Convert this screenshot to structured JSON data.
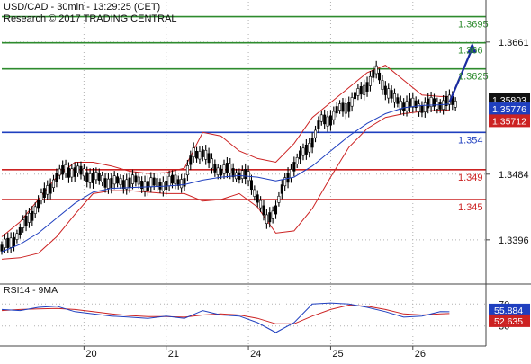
{
  "header": {
    "line1": "USD/CAD - 30min - 13:29:25 (CET)",
    "line2": "Research © 2017 TRADING CENTRAL"
  },
  "chart_data": {
    "type": "line",
    "title": "USD/CAD - 30min - 13:29:25 (CET)",
    "price_axis": {
      "ylim": [
        1.3338,
        1.3715
      ],
      "tick_labels": [
        {
          "value": 1.3661,
          "text": "1.3661"
        },
        {
          "value": 1.3484,
          "text": "1.3484"
        },
        {
          "value": 1.3396,
          "text": "1.3396"
        }
      ]
    },
    "x_axis": {
      "tick_labels": [
        {
          "value": 9,
          "text": "20"
        },
        {
          "value": 18,
          "text": "21"
        },
        {
          "value": 27,
          "text": "24"
        },
        {
          "value": 36,
          "text": "25"
        },
        {
          "value": 45,
          "text": "26"
        }
      ],
      "xlim": [
        0,
        53
      ]
    },
    "levels": [
      {
        "value": 1.3695,
        "label": "1.3695",
        "color": "#2e8b2e"
      },
      {
        "value": 1.366,
        "label": "1.366",
        "color": "#2e8b2e"
      },
      {
        "value": 1.3625,
        "label": "1.3625",
        "color": "#2e8b2e"
      },
      {
        "value": 1.354,
        "label": "1.354",
        "color": "#1f3fbf"
      },
      {
        "value": 1.349,
        "label": "1.349",
        "color": "#cc2222"
      },
      {
        "value": 1.345,
        "label": "1.345",
        "color": "#cc2222"
      }
    ],
    "price_tags": [
      {
        "value": 1.35803,
        "label": "1.35803",
        "bg": "#111111",
        "fg": "#ffffff"
      },
      {
        "value": 1.35776,
        "label": "1.35776",
        "bg": "#1f3fbf",
        "fg": "#ffffff"
      },
      {
        "value": 1.35712,
        "label": "1.35712",
        "bg": "#cc2222",
        "fg": "#ffffff"
      }
    ],
    "series": [
      {
        "kind": "close",
        "x": [
          0,
          1,
          2,
          3,
          4,
          5,
          6,
          7,
          8,
          9,
          10,
          11,
          12,
          13,
          14,
          15,
          16,
          17,
          18,
          19,
          20,
          21,
          22,
          23,
          24,
          25,
          26,
          27,
          28,
          29,
          30,
          31,
          32,
          33,
          34,
          35,
          36,
          37,
          38,
          39,
          40,
          41,
          42,
          43,
          44,
          45,
          46,
          47,
          48,
          49
        ],
        "values": [
          1.3385,
          1.3392,
          1.3408,
          1.3425,
          1.3445,
          1.3462,
          1.348,
          1.349,
          1.3488,
          1.3485,
          1.348,
          1.3476,
          1.3474,
          1.3472,
          1.3475,
          1.3473,
          1.3471,
          1.347,
          1.3472,
          1.3474,
          1.3476,
          1.351,
          1.3515,
          1.3495,
          1.349,
          1.3488,
          1.3485,
          1.3478,
          1.3455,
          1.342,
          1.344,
          1.347,
          1.3498,
          1.351,
          1.353,
          1.3555,
          1.356,
          1.357,
          1.3578,
          1.359,
          1.3605,
          1.362,
          1.36,
          1.3582,
          1.3578,
          1.3576,
          1.3575,
          1.3577,
          1.3579,
          1.358
        ]
      },
      {
        "kind": "moving-average",
        "color": "#1f3fbf",
        "x": [
          0,
          2,
          4,
          6,
          8,
          10,
          12,
          14,
          16,
          18,
          20,
          22,
          24,
          26,
          28,
          30,
          32,
          34,
          36,
          38,
          40,
          42,
          44,
          46,
          48,
          49
        ],
        "values": [
          1.338,
          1.339,
          1.3405,
          1.3425,
          1.3445,
          1.346,
          1.3465,
          1.3466,
          1.3467,
          1.3468,
          1.347,
          1.3476,
          1.348,
          1.3482,
          1.348,
          1.3475,
          1.348,
          1.3495,
          1.3515,
          1.3535,
          1.3552,
          1.3565,
          1.3573,
          1.3576,
          1.3577,
          1.3578
        ]
      },
      {
        "kind": "bollinger-upper",
        "color": "#cc2222",
        "x": [
          0,
          2,
          4,
          6,
          8,
          10,
          12,
          14,
          16,
          18,
          20,
          22,
          24,
          26,
          28,
          30,
          32,
          34,
          36,
          38,
          40,
          42,
          44,
          46,
          48,
          49
        ],
        "values": [
          1.34,
          1.342,
          1.345,
          1.348,
          1.35,
          1.35,
          1.3495,
          1.3488,
          1.3485,
          1.3486,
          1.3492,
          1.354,
          1.3535,
          1.3515,
          1.3505,
          1.35,
          1.3525,
          1.356,
          1.358,
          1.36,
          1.362,
          1.363,
          1.361,
          1.359,
          1.3588,
          1.3588
        ]
      },
      {
        "kind": "bollinger-lower",
        "color": "#cc2222",
        "x": [
          0,
          2,
          4,
          6,
          8,
          10,
          12,
          14,
          16,
          18,
          20,
          22,
          24,
          26,
          28,
          30,
          32,
          34,
          36,
          38,
          40,
          42,
          44,
          46,
          48,
          49
        ],
        "values": [
          1.337,
          1.3372,
          1.3378,
          1.34,
          1.343,
          1.3458,
          1.3462,
          1.3462,
          1.346,
          1.3458,
          1.3458,
          1.3448,
          1.345,
          1.3458,
          1.344,
          1.3405,
          1.3408,
          1.3438,
          1.348,
          1.352,
          1.3545,
          1.356,
          1.3565,
          1.3568,
          1.357,
          1.357
        ]
      }
    ],
    "forecast_arrow": {
      "from": [
        49,
        1.358
      ],
      "to": [
        51.5,
        1.366
      ],
      "color": "#1a2aa0"
    },
    "rsi": {
      "label": "RSI14 - 9MA",
      "ylim": [
        0,
        100
      ],
      "tick_labels": [
        {
          "value": 70,
          "text": "70"
        },
        {
          "value": 30,
          "text": "30"
        }
      ],
      "rsi_line": {
        "color": "#1f3fbf",
        "x": [
          0,
          2,
          4,
          6,
          8,
          10,
          12,
          14,
          16,
          18,
          20,
          22,
          24,
          26,
          28,
          30,
          32,
          34,
          36,
          38,
          40,
          42,
          44,
          46,
          48,
          49
        ],
        "values": [
          60,
          58,
          64,
          66,
          56,
          52,
          48,
          46,
          44,
          48,
          44,
          58,
          50,
          48,
          36,
          18,
          36,
          70,
          72,
          70,
          64,
          56,
          46,
          48,
          56,
          55.884
        ]
      },
      "ma_line": {
        "color": "#cc2222",
        "x": [
          0,
          2,
          4,
          6,
          8,
          10,
          12,
          14,
          16,
          18,
          20,
          22,
          24,
          26,
          28,
          30,
          32,
          34,
          36,
          38,
          40,
          42,
          44,
          46,
          48,
          49
        ],
        "values": [
          58,
          60,
          61,
          62,
          60,
          56,
          52,
          49,
          47,
          47,
          46,
          50,
          52,
          50,
          44,
          34,
          34,
          48,
          60,
          68,
          66,
          60,
          52,
          50,
          52,
          52.635
        ]
      },
      "tags": [
        {
          "value": 55.884,
          "label": "55.884",
          "bg": "#1f3fbf",
          "fg": "#ffffff"
        },
        {
          "value": 52.635,
          "label": "52.635",
          "bg": "#cc2222",
          "fg": "#ffffff"
        }
      ]
    }
  }
}
